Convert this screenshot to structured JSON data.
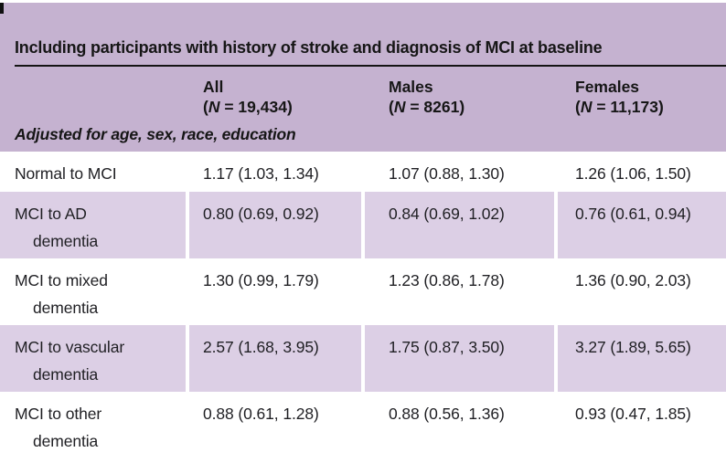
{
  "table": {
    "title": "Including participants with history of stroke and diagnosis of MCI at baseline",
    "adjusted_note": "Adjusted for age, sex, race, education",
    "columns": [
      {
        "label": "All",
        "n_open": "(",
        "n_letter": "N",
        "n_rest": " = 19,434)"
      },
      {
        "label": "Males",
        "n_open": "(",
        "n_letter": "N",
        "n_rest": " = 8261)"
      },
      {
        "label": "Females",
        "n_open": "(",
        "n_letter": "N",
        "n_rest": " = 11,173)"
      }
    ],
    "rows": [
      {
        "label": "Normal to MCI",
        "all": "1.17 (1.03, 1.34)",
        "males": "1.07 (0.88, 1.30)",
        "females": "1.26 (1.06, 1.50)",
        "shaded": false
      },
      {
        "label": "MCI to AD\ndementia",
        "all": "0.80 (0.69, 0.92)",
        "males": "0.84 (0.69, 1.02)",
        "females": "0.76 (0.61, 0.94)",
        "shaded": true
      },
      {
        "label": "MCI to mixed\ndementia",
        "all": "1.30 (0.99, 1.79)",
        "males": "1.23 (0.86, 1.78)",
        "females": "1.36 (0.90, 2.03)",
        "shaded": false
      },
      {
        "label": "MCI to vascular\ndementia",
        "all": "2.57 (1.68, 3.95)",
        "males": "1.75 (0.87, 3.50)",
        "females": "3.27 (1.89, 5.65)",
        "shaded": true
      },
      {
        "label": "MCI to other\ndementia",
        "all": "0.88 (0.61, 1.28)",
        "males": "0.88 (0.56, 1.36)",
        "females": "0.93 (0.47, 1.85)",
        "shaded": false
      }
    ],
    "colors": {
      "header_bg": "#c5b2d0",
      "row_shaded_bg": "#dccfe5",
      "row_plain_bg": "#ffffff",
      "title_rule": "#141414",
      "text": "#1f1f23"
    }
  }
}
